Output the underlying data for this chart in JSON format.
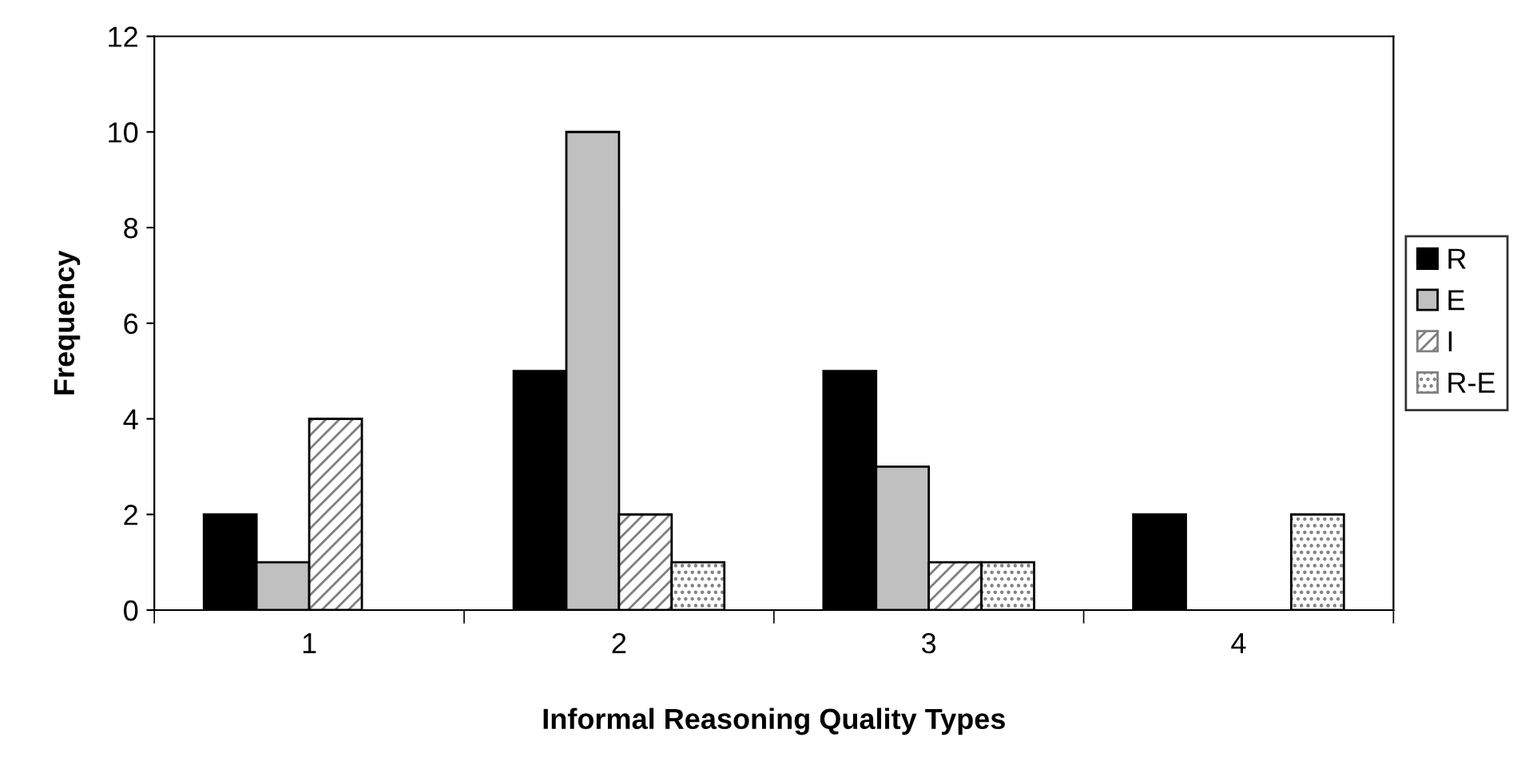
{
  "chart_data": {
    "type": "bar",
    "xlabel": "Informal Reasoning Quality Types",
    "ylabel": "Frequency",
    "categories": [
      "1",
      "2",
      "3",
      "4"
    ],
    "series": [
      {
        "name": "R",
        "color": "#000000",
        "values": [
          2,
          5,
          5,
          2
        ]
      },
      {
        "name": "E",
        "color": "#c0c0c0",
        "values": [
          1,
          10,
          3,
          null
        ]
      },
      {
        "name": "I",
        "color": "#808080",
        "values": [
          4,
          2,
          1,
          null
        ]
      },
      {
        "name": "R-E",
        "color": "#808080",
        "values": [
          null,
          1,
          1,
          2
        ]
      }
    ],
    "ylim": [
      0,
      12
    ],
    "yticks": [
      0,
      2,
      4,
      6,
      8,
      10,
      12
    ],
    "grid": false,
    "legend": "right"
  }
}
